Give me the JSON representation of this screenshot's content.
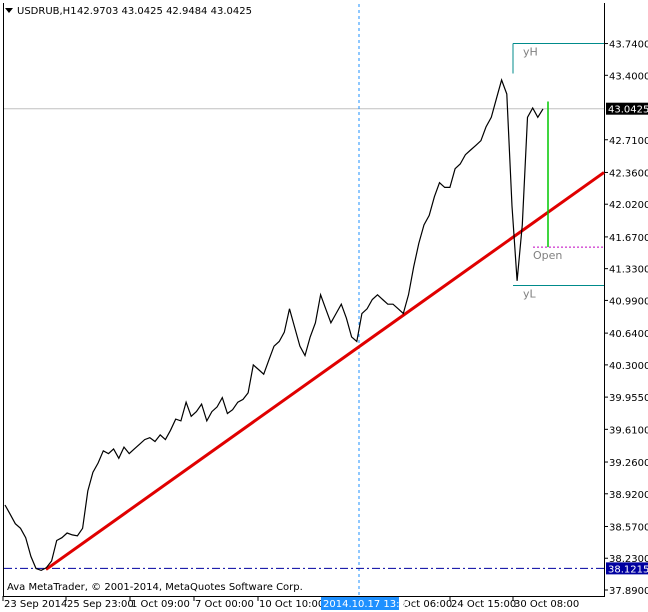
{
  "header": {
    "symbol": "USDRUB,H1",
    "ohlc": "42.9703 43.0425 42.9484 43.0425",
    "dropdown_icon": "triangle-down-icon"
  },
  "copyright": "Ava MetaTrader, © 2001-2014, MetaQuotes Software Corp.",
  "colors": {
    "price_line": "#000000",
    "trend_line": "#e00000",
    "level_line": "#0000a0",
    "crosshair": "#1e90ff",
    "cross_label_bg": "#1e90ff",
    "box_line": "#008b8b",
    "green_line": "#00c800",
    "open_line": "#c000c0",
    "current_label_bg": "#000000",
    "level_label_bg": "#0000a0"
  },
  "chart_data": {
    "type": "line",
    "ylim": [
      37.89,
      43.885
    ],
    "y_ticks": [
      "43.7400",
      "43.4000",
      "42.7100",
      "42.3600",
      "42.0200",
      "41.6700",
      "41.3300",
      "40.9900",
      "40.6400",
      "40.3000",
      "39.9550",
      "39.6100",
      "39.2600",
      "38.9200",
      "38.5700",
      "38.2300",
      "37.8900"
    ],
    "x_ticks": [
      "23 Sep 2014",
      "25 Sep 23:00",
      "1 Oct 09:00",
      "7 Oct 00:00",
      "10 Oct 10:00",
      "14 Oct 20:00",
      "20 Oct 06:00",
      "24 Oct 15:00",
      "30 Oct 08:00"
    ],
    "crosshair_time": "2014.10.17 13:30",
    "current_price": "43.0425",
    "level_price": "38.1215",
    "annotations": {
      "high_label": "yH",
      "low_label": "yL",
      "open_label": "Open"
    },
    "series": [
      {
        "values": [
          38.8,
          38.7,
          38.6,
          38.55,
          38.45,
          38.25,
          38.12,
          38.1,
          38.13,
          38.2,
          38.42,
          38.45,
          38.5,
          38.48,
          38.47,
          38.55,
          38.95,
          39.15,
          39.25,
          39.38,
          39.35,
          39.4,
          39.3,
          39.42,
          39.35,
          39.4,
          39.45,
          39.5,
          39.52,
          39.48,
          39.55,
          39.5,
          39.6,
          39.72,
          39.7,
          39.9,
          39.75,
          39.8,
          39.88,
          39.7,
          39.8,
          39.85,
          39.95,
          39.78,
          39.82,
          39.9,
          39.93,
          40.0,
          40.3,
          40.25,
          40.2,
          40.35,
          40.5,
          40.55,
          40.65,
          40.9,
          40.7,
          40.5,
          40.4,
          40.6,
          40.75,
          41.05,
          40.9,
          40.75,
          40.85,
          40.95,
          40.8,
          40.6,
          40.55,
          40.85,
          40.9,
          41.0,
          41.05,
          41.0,
          40.95,
          40.95,
          40.9,
          40.85,
          41.05,
          41.35,
          41.6,
          41.8,
          41.9,
          42.1,
          42.25,
          42.2,
          42.2,
          42.4,
          42.45,
          42.55,
          42.6,
          42.65,
          42.7,
          42.85,
          42.95,
          43.15,
          43.35,
          43.2,
          42.0,
          41.2,
          41.8,
          42.95,
          43.05,
          42.95,
          43.04
        ]
      }
    ],
    "trend_line": {
      "start_value": 38.11,
      "end_value": 42.36
    }
  }
}
